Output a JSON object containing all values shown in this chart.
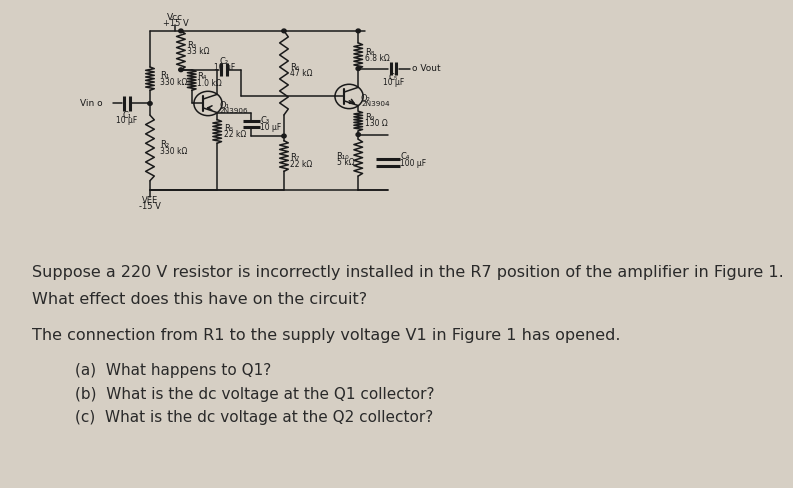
{
  "bg_color": "#d6cfc4",
  "text_color": "#2a2a2a",
  "font_size_question": 11.5,
  "font_size_sub": 11.0,
  "font_size_answer": 11.5,
  "indent_sub": 0.12,
  "question_line1": "Suppose a 220 V resistor is incorrectly installed in the R7 position of the amplifier in Figure 1.",
  "question_line2": "What effect does this have on the circuit?",
  "answer_line": "The connection from R1 to the supply voltage V1 in Figure 1 has opened.",
  "sub_a": "(a)  What happens to Q1?",
  "sub_b": "(b)  What is the dc voltage at the Q1 collector?",
  "sub_c": "(c)  What is the dc voltage at the Q2 collector?"
}
